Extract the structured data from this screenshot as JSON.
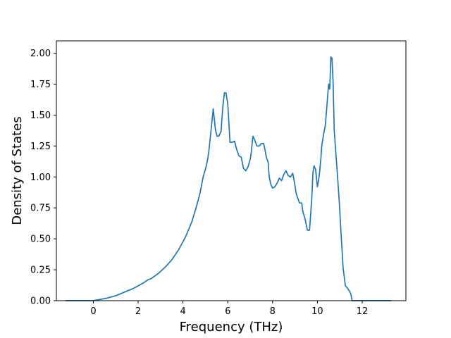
{
  "chart_data": {
    "type": "line",
    "xlabel": "Frequency (THz)",
    "ylabel": "Density of States",
    "xlim": [
      -1.65,
      13.95
    ],
    "ylim": [
      0.0,
      2.1
    ],
    "xticks": [
      0,
      2,
      4,
      6,
      8,
      10,
      12
    ],
    "xtick_labels": [
      "0",
      "2",
      "4",
      "6",
      "8",
      "10",
      "12"
    ],
    "yticks": [
      0.0,
      0.25,
      0.5,
      0.75,
      1.0,
      1.25,
      1.5,
      1.75,
      2.0
    ],
    "ytick_labels": [
      "0.00",
      "0.25",
      "0.50",
      "0.75",
      "1.00",
      "1.25",
      "1.50",
      "1.75",
      "2.00"
    ],
    "grid": false,
    "line_color": "#1f77b4",
    "series": [
      {
        "x": [
          -1.25,
          -0.5,
          0.0,
          0.3,
          0.6,
          1.0,
          1.4,
          1.8,
          2.2,
          2.45,
          2.6,
          2.9,
          3.2,
          3.5,
          3.8,
          4.1,
          4.4,
          4.6,
          4.75,
          4.9,
          5.0,
          5.1,
          5.15,
          5.25,
          5.35,
          5.45,
          5.52,
          5.6,
          5.7,
          5.78,
          5.85,
          5.92,
          6.0,
          6.1,
          6.2,
          6.3,
          6.4,
          6.5,
          6.6,
          6.7,
          6.8,
          6.9,
          7.0,
          7.05,
          7.12,
          7.2,
          7.3,
          7.4,
          7.5,
          7.6,
          7.65,
          7.72,
          7.8,
          7.85,
          7.92,
          8.0,
          8.1,
          8.2,
          8.3,
          8.4,
          8.5,
          8.6,
          8.7,
          8.8,
          8.9,
          9.0,
          9.05,
          9.1,
          9.2,
          9.3,
          9.35,
          9.45,
          9.55,
          9.65,
          9.75,
          9.8,
          9.85,
          9.92,
          10.0,
          10.05,
          10.1,
          10.15,
          10.2,
          10.3,
          10.35,
          10.4,
          10.5,
          10.55,
          10.6,
          10.65,
          10.7,
          10.75,
          10.82,
          10.9,
          10.98,
          11.05,
          11.15,
          11.25,
          11.35,
          11.45,
          11.5,
          11.55,
          11.65,
          11.75,
          11.85,
          11.95,
          12.05,
          12.2,
          12.5,
          13.3
        ],
        "y": [
          0.0,
          0.0,
          0.0,
          0.01,
          0.02,
          0.04,
          0.07,
          0.1,
          0.14,
          0.17,
          0.18,
          0.22,
          0.27,
          0.33,
          0.41,
          0.51,
          0.64,
          0.76,
          0.86,
          1.0,
          1.06,
          1.14,
          1.2,
          1.37,
          1.55,
          1.38,
          1.33,
          1.33,
          1.37,
          1.57,
          1.68,
          1.68,
          1.59,
          1.28,
          1.28,
          1.29,
          1.22,
          1.17,
          1.16,
          1.07,
          1.05,
          1.08,
          1.14,
          1.2,
          1.33,
          1.3,
          1.25,
          1.25,
          1.27,
          1.27,
          1.23,
          1.16,
          1.12,
          1.0,
          0.94,
          0.91,
          0.92,
          0.95,
          0.99,
          0.97,
          1.02,
          1.05,
          1.01,
          1.0,
          1.03,
          0.93,
          0.87,
          0.84,
          0.79,
          0.79,
          0.72,
          0.66,
          0.57,
          0.57,
          0.83,
          1.03,
          1.09,
          1.06,
          0.92,
          0.97,
          1.04,
          1.14,
          1.26,
          1.37,
          1.41,
          1.52,
          1.75,
          1.71,
          1.97,
          1.96,
          1.77,
          1.38,
          1.2,
          1.0,
          0.79,
          0.56,
          0.26,
          0.12,
          0.1,
          0.07,
          0.05,
          0.0,
          0.0,
          0.0,
          0.0,
          0.0,
          0.0,
          0.0,
          0.0,
          0.0
        ]
      }
    ]
  }
}
